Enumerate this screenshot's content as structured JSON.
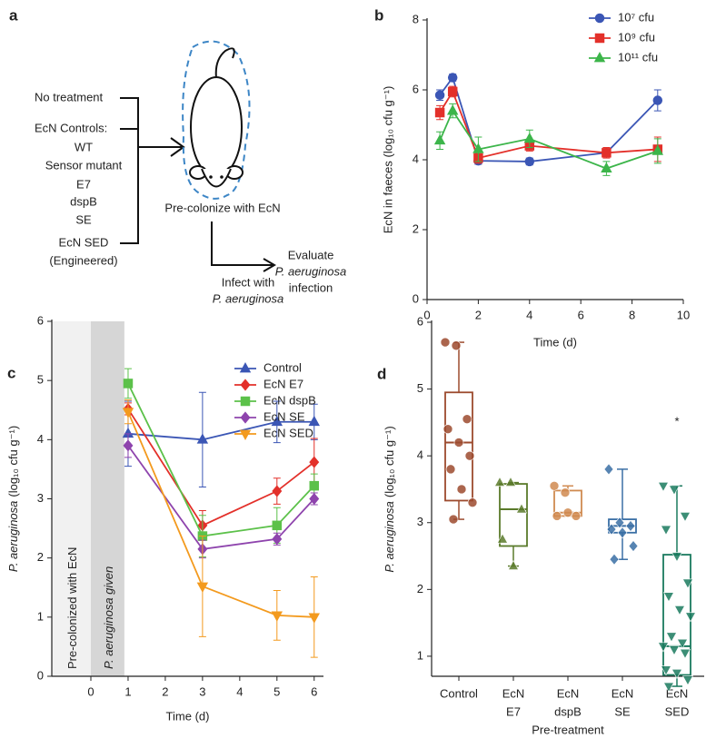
{
  "diagram": {
    "label": "a",
    "groups": [
      "No treatment",
      "EcN Controls:",
      "WT",
      "Sensor mutant",
      "E7",
      "dspB",
      "SE",
      "EcN SED",
      "(Engineered)"
    ],
    "step1": "Pre-colonize with EcN",
    "step2": [
      "Infect with",
      "P. aeruginosa"
    ],
    "step3": [
      "Evaluate",
      "P. aeruginosa",
      "infection"
    ]
  },
  "chart_data": [
    {
      "type": "line",
      "label": "b",
      "xlabel": "Time (d)",
      "ylabel": "EcN in faeces (log₁₀ cfu g⁻¹)",
      "x": [
        0.5,
        1,
        2,
        4,
        7,
        9
      ],
      "xlim": [
        0,
        10
      ],
      "xticks": [
        0,
        2,
        4,
        6,
        8,
        10
      ],
      "ylim": [
        0,
        8
      ],
      "yticks": [
        0,
        2,
        4,
        6,
        8
      ],
      "series": [
        {
          "name": "10⁷ cfu",
          "color": "#3b56b5",
          "marker": "circle",
          "values": [
            5.85,
            6.35,
            3.97,
            3.95,
            4.2,
            5.7
          ],
          "errors": [
            0.15,
            0.1,
            0.1,
            0.1,
            0.1,
            0.3
          ]
        },
        {
          "name": "10⁹ cfu",
          "color": "#e3302a",
          "marker": "square",
          "values": [
            5.35,
            5.95,
            4.05,
            4.4,
            4.2,
            4.3
          ],
          "errors": [
            0.2,
            0.15,
            0.15,
            0.15,
            0.15,
            0.35
          ]
        },
        {
          "name": "10¹¹ cfu",
          "color": "#3cb54a",
          "marker": "triangle",
          "values": [
            4.55,
            5.4,
            4.3,
            4.6,
            3.75,
            4.25
          ],
          "errors": [
            0.25,
            0.2,
            0.35,
            0.25,
            0.2,
            0.35
          ]
        }
      ]
    },
    {
      "type": "line",
      "label": "c",
      "xlabel": "Time (d)",
      "ylabel": [
        "P. aeruginosa",
        "(log₁₀ cfu g⁻¹)"
      ],
      "x": [
        1,
        3,
        5,
        6
      ],
      "xlim": [
        -1.05,
        6.25
      ],
      "xticks": [
        0,
        1,
        2,
        3,
        4,
        5,
        6
      ],
      "ylim": [
        0,
        6
      ],
      "yticks": [
        0,
        1,
        2,
        3,
        4,
        5,
        6
      ],
      "regions": [
        {
          "label": "Pre-colonized with EcN",
          "x": [
            -1.05,
            0
          ],
          "color": "#f1f1f1"
        },
        {
          "label": "P. aeruginosa given",
          "x": [
            0,
            0.9
          ],
          "color": "#d6d6d6",
          "italic": true
        }
      ],
      "series": [
        {
          "name": "Control",
          "color": "#3b56b5",
          "marker": "triangle",
          "values": [
            4.1,
            4.0,
            4.3,
            4.3
          ],
          "errors": [
            0.55,
            0.8,
            0.35,
            0.3
          ]
        },
        {
          "name": "EcN E7",
          "color": "#e3302a",
          "marker": "diamond",
          "values": [
            4.52,
            2.55,
            3.13,
            3.62
          ],
          "errors": [
            0.1,
            0.25,
            0.22,
            0.4
          ]
        },
        {
          "name": "EcN dspB",
          "color": "#5cc14a",
          "marker": "square",
          "values": [
            4.95,
            2.37,
            2.55,
            3.22
          ],
          "errors": [
            0.25,
            0.35,
            0.3,
            0.2
          ]
        },
        {
          "name": "EcN SE",
          "color": "#8e44ad",
          "marker": "diamond",
          "values": [
            3.9,
            2.15,
            2.32,
            3.0
          ],
          "errors": [
            0.2,
            0.15,
            0.1,
            0.1
          ]
        },
        {
          "name": "EcN SED",
          "color": "#f39a1e",
          "marker": "tdown",
          "values": [
            4.47,
            1.52,
            1.03,
            1.0
          ],
          "errors": [
            0.2,
            0.85,
            0.42,
            0.68
          ]
        }
      ]
    },
    {
      "type": "box",
      "label": "d",
      "xlabel": "Pre-treatment",
      "ylabel": [
        "P. aeruginosa",
        "(log₁₀ cfu g⁻¹)"
      ],
      "ylim": [
        0.7,
        6
      ],
      "yticks": [
        1,
        2,
        3,
        4,
        5,
        6
      ],
      "categories": [
        [
          "Control"
        ],
        [
          "EcN",
          "E7"
        ],
        [
          "EcN",
          "dspB"
        ],
        [
          "EcN",
          "SE"
        ],
        [
          "EcN",
          "SED"
        ]
      ],
      "boxes": [
        {
          "color": "#9c4a2e",
          "marker": "circle",
          "min": 3.05,
          "q1": 3.33,
          "median": 4.2,
          "q3": 4.95,
          "max": 5.7,
          "points": [
            5.7,
            5.65,
            4.55,
            4.4,
            4.2,
            4.0,
            3.8,
            3.5,
            3.3,
            3.05
          ]
        },
        {
          "color": "#5a7a2a",
          "marker": "triangle",
          "min": 2.35,
          "q1": 2.65,
          "median": 3.2,
          "q3": 3.58,
          "max": 3.6,
          "points": [
            3.6,
            3.6,
            3.2,
            2.75,
            2.35
          ]
        },
        {
          "color": "#d08a50",
          "marker": "circle",
          "min": 3.1,
          "q1": 3.1,
          "median": 3.15,
          "q3": 3.48,
          "max": 3.55,
          "points": [
            3.55,
            3.45,
            3.1,
            3.1,
            3.15
          ]
        },
        {
          "color": "#3a6fa5",
          "marker": "diamond",
          "min": 2.45,
          "q1": 2.85,
          "median": 2.95,
          "q3": 3.05,
          "max": 3.8,
          "points": [
            3.8,
            3.0,
            2.95,
            2.9,
            2.85,
            2.65,
            2.45
          ]
        },
        {
          "color": "#1a7a5e",
          "marker": "tdown",
          "min": 0.55,
          "q1": 0.72,
          "median": 1.15,
          "q3": 2.52,
          "max": 3.55,
          "points": [
            3.55,
            3.5,
            3.1,
            2.9,
            2.5,
            2.1,
            1.9,
            1.7,
            1.6,
            1.3,
            1.2,
            1.15,
            1.1,
            1.05,
            0.8,
            0.75,
            0.65,
            0.55
          ]
        }
      ],
      "annotations": [
        {
          "text": "*",
          "category_index": 4
        }
      ]
    }
  ]
}
